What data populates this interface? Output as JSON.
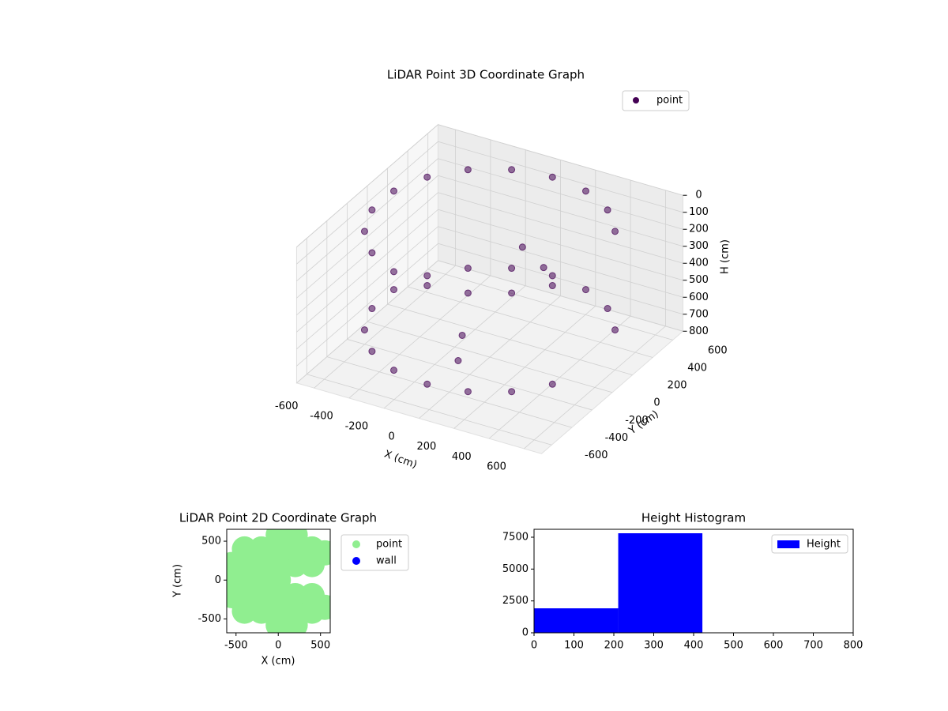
{
  "chart_data": [
    {
      "type": "scatter3d",
      "title": "LiDAR Point 3D Coordinate Graph",
      "x_label": "X (cm)",
      "y_label": "Y (cm)",
      "z_label": "H (cm)",
      "elev": 30,
      "azim": -60,
      "legend": "upper right",
      "xlim": [
        -700,
        700
      ],
      "ylim": [
        -700,
        700
      ],
      "zlim": [
        800,
        0
      ],
      "xticks": [
        -600,
        -400,
        -200,
        0,
        200,
        400,
        600
      ],
      "yticks": [
        -600,
        -400,
        -200,
        0,
        200,
        400,
        600
      ],
      "zticks": [
        0,
        100,
        200,
        300,
        400,
        500,
        600,
        700,
        800
      ],
      "series": [
        {
          "name": "point",
          "color": "#440154",
          "x": [
            537,
            537,
            399,
            399,
            212,
            212,
            0,
            0,
            -212,
            -212,
            -399,
            -399,
            -537,
            -537,
            -611,
            -611,
            -611,
            -611,
            -537,
            -537,
            -399,
            -399,
            -212,
            -212,
            0,
            0,
            212,
            212,
            399,
            399,
            537,
            537,
            100,
            250,
            -100,
            50
          ],
          "y": [
            310,
            310,
            475,
            475,
            583,
            583,
            620,
            620,
            583,
            583,
            475,
            475,
            310,
            310,
            108,
            108,
            -108,
            -108,
            -310,
            -310,
            -475,
            -475,
            -583,
            -583,
            -620,
            -620,
            -583,
            -583,
            -475,
            -475,
            -310,
            -310,
            150,
            100,
            -100,
            -400
          ],
          "h": [
            60,
            640,
            60,
            640,
            60,
            640,
            60,
            640,
            60,
            640,
            60,
            640,
            60,
            640,
            60,
            640,
            60,
            640,
            60,
            640,
            60,
            640,
            60,
            640,
            60,
            640,
            60,
            640,
            60,
            640,
            60,
            640,
            200,
            250,
            650,
            600
          ]
        }
      ]
    },
    {
      "type": "scatter",
      "title": "LiDAR Point 2D Coordinate Graph",
      "x_label": "X (cm)",
      "y_label": "Y (cm)",
      "legend": "outside upper right",
      "xlim": [
        -610,
        615
      ],
      "ylim": [
        -678,
        653
      ],
      "xticks": [
        -500,
        0,
        500
      ],
      "yticks": [
        -500,
        0,
        500
      ],
      "series": [
        {
          "name": "point",
          "color": "#90ee90",
          "x": [
            -400,
            -400,
            -400,
            -400,
            -400,
            -200,
            -200,
            -200,
            -200,
            -200,
            0,
            0,
            0,
            0,
            0,
            200,
            200,
            200,
            200,
            400,
            400,
            400,
            400,
            -550,
            0,
            0,
            550,
            550,
            200,
            200,
            -550,
            -550
          ],
          "y": [
            -400,
            -200,
            0,
            200,
            400,
            -400,
            -200,
            0,
            200,
            400,
            -400,
            -200,
            0,
            200,
            400,
            -400,
            -200,
            200,
            400,
            -400,
            -200,
            200,
            400,
            0,
            580,
            -580,
            350,
            -350,
            580,
            -580,
            200,
            -200
          ]
        },
        {
          "name": "wall",
          "color": "#0000ff",
          "x": [],
          "y": []
        }
      ]
    },
    {
      "type": "hist",
      "title": "Height Histogram",
      "legend": "upper right",
      "bins": [
        0,
        211,
        422
      ],
      "counts": [
        1920,
        7810
      ],
      "series": [
        {
          "name": "Height",
          "color": "#0000ff"
        }
      ],
      "xlim": [
        0,
        800
      ],
      "ylim": [
        0,
        8120
      ],
      "xticks": [
        0,
        100,
        200,
        300,
        400,
        500,
        600,
        700,
        800
      ],
      "yticks": [
        0,
        2500,
        5000,
        7500
      ]
    }
  ]
}
